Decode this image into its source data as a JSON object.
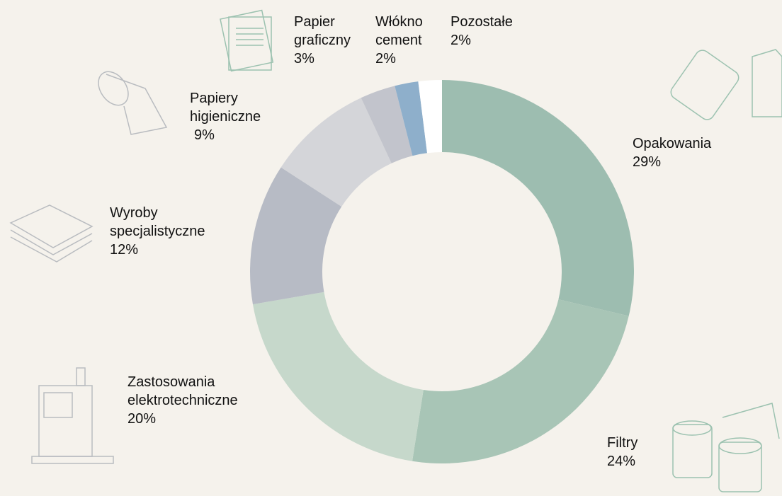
{
  "chart_data": {
    "type": "donut",
    "categories": [
      "Opakowania",
      "Filtry",
      "Zastosowania elektrotechniczne",
      "Wyroby specjalistyczne",
      "Papiery higieniczne",
      "Papier graficzny",
      "Włókno cement",
      "Pozostałe"
    ],
    "values": [
      29,
      24,
      20,
      12,
      9,
      3,
      2,
      2
    ],
    "value_labels": [
      "29%",
      "24%",
      "20%",
      "12%",
      "9%",
      "3%",
      "2%",
      "2%"
    ],
    "colors": [
      "#9dbdb0",
      "#a8c5b6",
      "#c6d8cb",
      "#b7bbc5",
      "#d4d5d9",
      "#c2c4cc",
      "#8eafcb",
      "#ffffff"
    ]
  }
}
